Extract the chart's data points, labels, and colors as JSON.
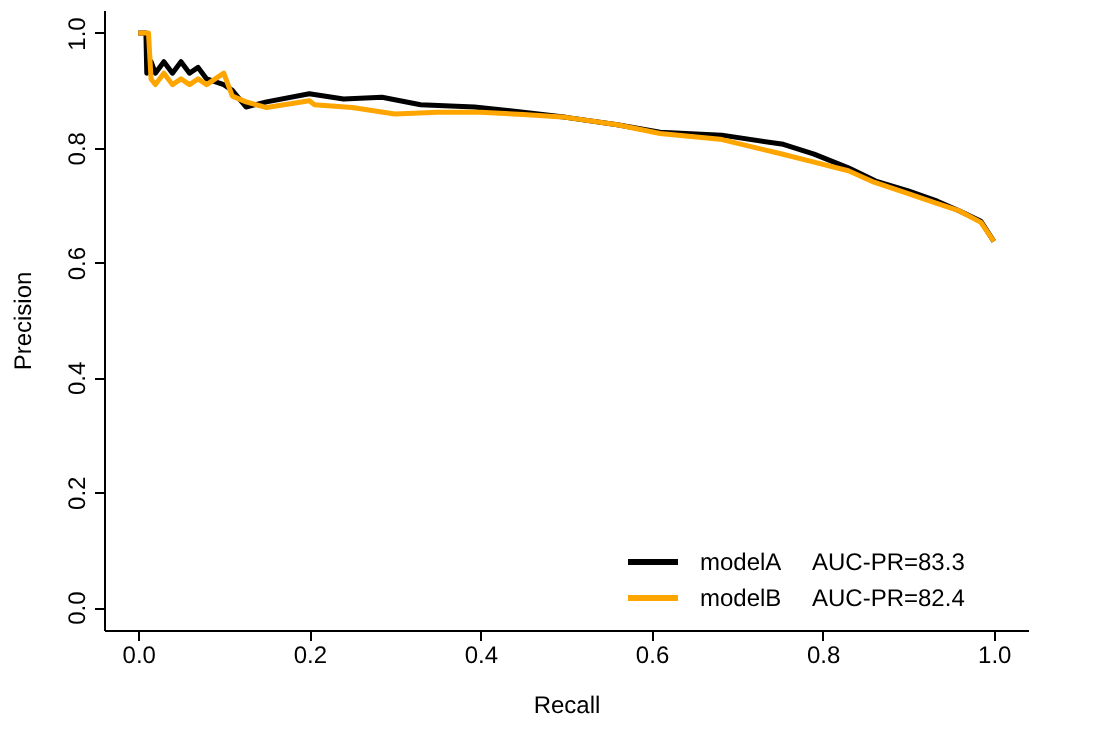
{
  "chart_data": {
    "type": "line",
    "xlabel": "Recall",
    "ylabel": "Precision",
    "xlim": [
      -0.04,
      1.04
    ],
    "ylim": [
      -0.04,
      1.04
    ],
    "xticks": [
      {
        "value": 0,
        "label": "0.0"
      },
      0.2,
      0.4,
      0.6,
      0.8,
      {
        "value": 1,
        "label": "1.0"
      }
    ],
    "yticks": [
      {
        "value": 0,
        "label": "0.0"
      },
      0.2,
      0.4,
      0.6,
      0.8,
      {
        "value": 1,
        "label": "1.0"
      }
    ],
    "series": [
      {
        "name": "modelA",
        "color": "#000000",
        "x": [
          0.0,
          0.009,
          0.01,
          0.015,
          0.02,
          0.03,
          0.04,
          0.05,
          0.06,
          0.07,
          0.08,
          0.1,
          0.11,
          0.126,
          0.15,
          0.2,
          0.24,
          0.285,
          0.33,
          0.393,
          0.45,
          0.5,
          0.56,
          0.61,
          0.682,
          0.754,
          0.79,
          0.83,
          0.862,
          0.9,
          0.934,
          0.96,
          0.985,
          1.0
        ],
        "values": [
          1.0,
          1.0,
          0.93,
          0.95,
          0.93,
          0.95,
          0.93,
          0.95,
          0.93,
          0.94,
          0.92,
          0.91,
          0.9,
          0.871,
          0.88,
          0.894,
          0.885,
          0.888,
          0.875,
          0.871,
          0.862,
          0.853,
          0.84,
          0.827,
          0.822,
          0.806,
          0.789,
          0.765,
          0.742,
          0.725,
          0.707,
          0.69,
          0.672,
          0.637
        ]
      },
      {
        "name": "modelB",
        "color": "#ffa500",
        "x": [
          0.0,
          0.012,
          0.015,
          0.02,
          0.03,
          0.04,
          0.05,
          0.06,
          0.07,
          0.08,
          0.1,
          0.11,
          0.126,
          0.15,
          0.2,
          0.206,
          0.25,
          0.3,
          0.35,
          0.4,
          0.45,
          0.5,
          0.56,
          0.61,
          0.68,
          0.75,
          0.79,
          0.83,
          0.86,
          0.9,
          0.93,
          0.96,
          0.985,
          1.0
        ],
        "values": [
          1.0,
          1.0,
          0.92,
          0.91,
          0.93,
          0.91,
          0.92,
          0.91,
          0.92,
          0.91,
          0.93,
          0.89,
          0.88,
          0.87,
          0.882,
          0.875,
          0.87,
          0.859,
          0.862,
          0.862,
          0.858,
          0.853,
          0.84,
          0.825,
          0.815,
          0.79,
          0.775,
          0.76,
          0.74,
          0.72,
          0.705,
          0.69,
          0.67,
          0.637
        ]
      }
    ],
    "annotations": [
      "AUC-PR=83.3",
      "AUC-PR=82.4"
    ],
    "legend": "bottom right",
    "grid": false,
    "line_style": "solid",
    "marker": "none"
  }
}
